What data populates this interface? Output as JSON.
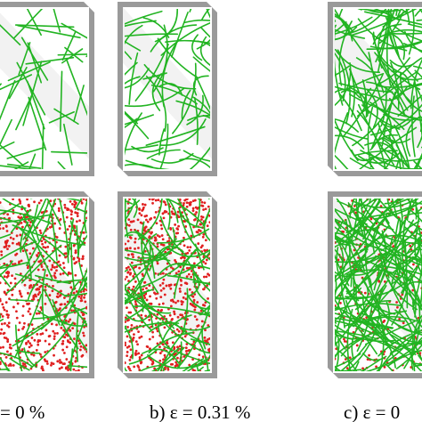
{
  "captions": [
    "= 0 %",
    "b) ε = 0.31 %",
    "c) ε = 0"
  ]
}
